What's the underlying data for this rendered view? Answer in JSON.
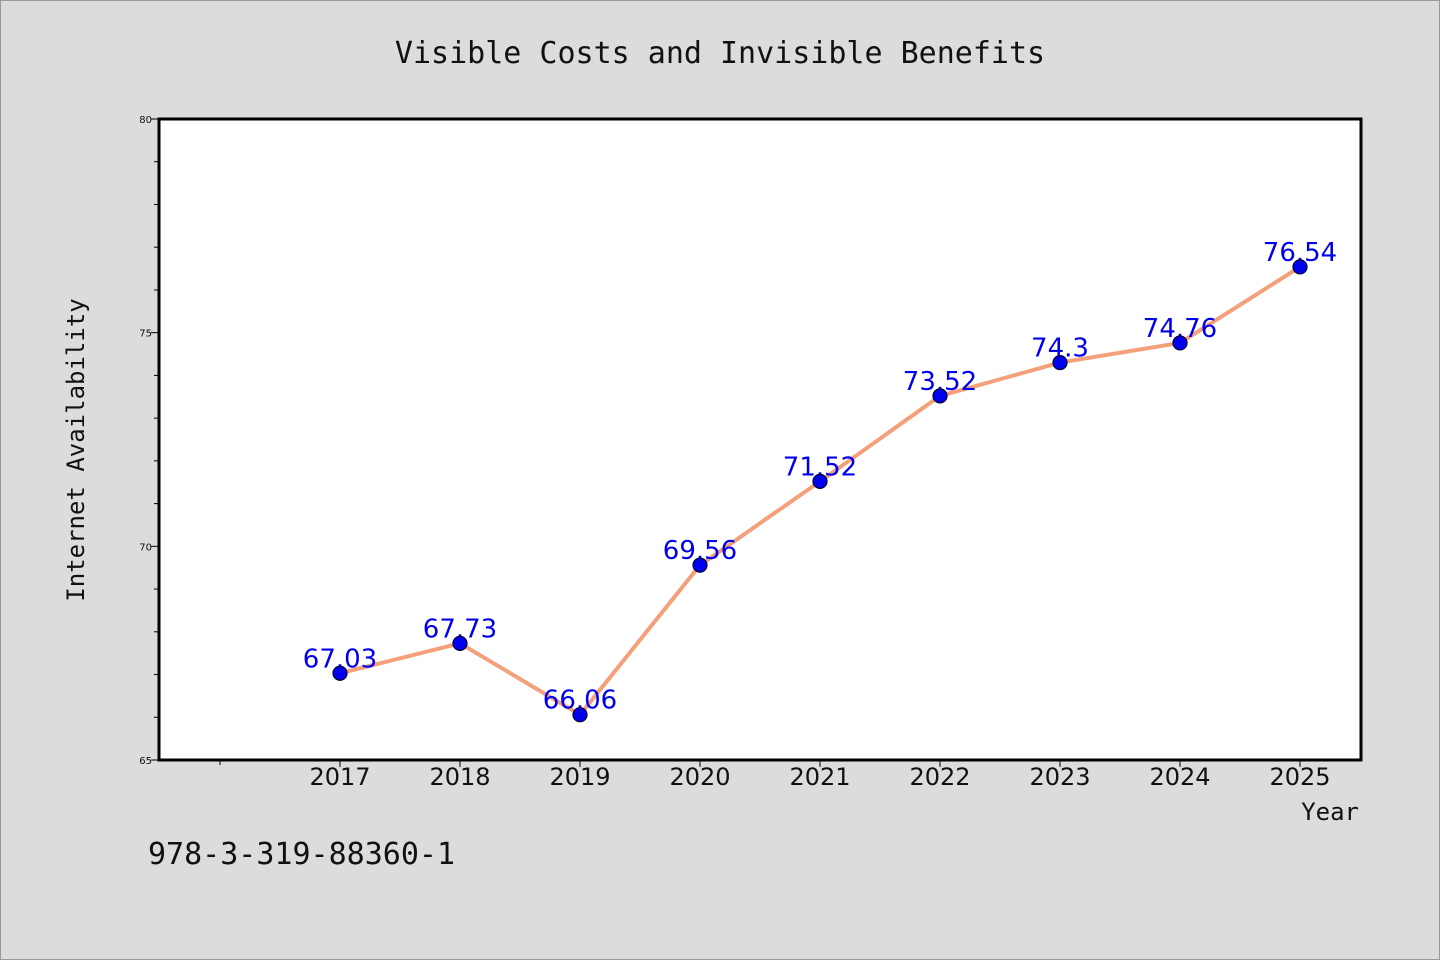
{
  "chart_data": {
    "type": "line",
    "title": "Visible Costs and Invisible Benefits",
    "xlabel": "Year",
    "ylabel": "Internet Availability",
    "x": [
      "2017",
      "2018",
      "2019",
      "2020",
      "2021",
      "2022",
      "2023",
      "2024",
      "2025"
    ],
    "values": [
      67.03,
      67.73,
      66.06,
      69.56,
      71.52,
      73.52,
      74.3,
      74.76,
      76.54
    ],
    "data_labels": [
      "67.03",
      "67.73",
      "66.06",
      "69.56",
      "71.52",
      "73.52",
      "74.3",
      "74.76",
      "76.54"
    ],
    "ylim": [
      65,
      80
    ],
    "yticks": [
      "65",
      "70",
      "75",
      "80"
    ],
    "grid": false,
    "line_color": "#f4a07a",
    "marker_color": "#0000ee",
    "label_color": "#0000ee"
  },
  "footer": {
    "isbn": "978-3-319-88360-1"
  }
}
